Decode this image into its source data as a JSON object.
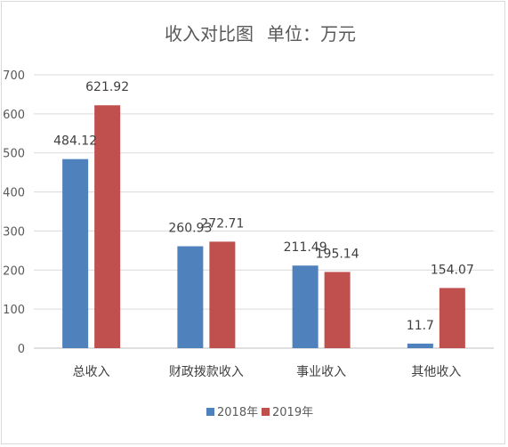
{
  "chart_data": {
    "type": "bar",
    "title": "收入对比图",
    "subtitle": "单位：万元",
    "categories": [
      "总收入",
      "财政拨款收入",
      "事业收入",
      "其他收入"
    ],
    "series": [
      {
        "name": "2018年",
        "color": "#4f81bd",
        "values": [
          484.12,
          260.93,
          211.49,
          11.7
        ],
        "labels": [
          "484.12",
          "260.93",
          "211.49",
          "11.7"
        ]
      },
      {
        "name": "2019年",
        "color": "#c0504d",
        "values": [
          621.92,
          272.71,
          195.14,
          154.07
        ],
        "labels": [
          "621.92",
          "272.71",
          "195.14",
          "154.07"
        ]
      }
    ],
    "yticks": [
      "0",
      "100",
      "200",
      "300",
      "400",
      "500",
      "600",
      "700"
    ],
    "ylim": [
      0,
      700
    ],
    "grid": true,
    "legend_position": "bottom"
  }
}
